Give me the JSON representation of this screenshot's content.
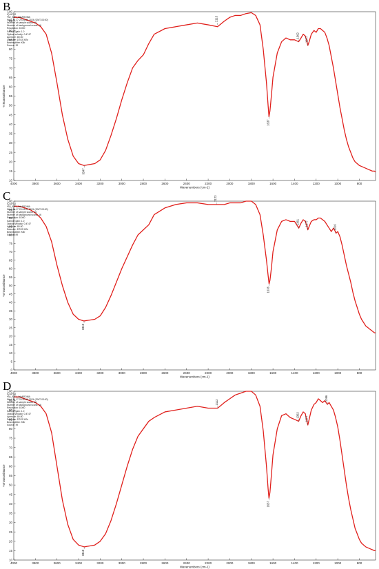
{
  "panels": [
    {
      "label": "B",
      "meta_lines": [
        "IQ-UFSJ",
        "*B2_ATR_LabAROMA",
        "Wed Jul 17 20:26:29 2024 (GMT-03:00)",
        "Number of sample scans: 16",
        "Number of background scans: 16",
        "Resolution: 8.000",
        "Sample gain: 1.0",
        "Optical velocity: 0.4747",
        "Aperture: 80.00",
        "Detector: DTGS KBr",
        "Beamsplitter: KBr",
        "Source: IR"
      ],
      "chart_data": {
        "type": "line",
        "title": "",
        "xlabel": "Wavenumbers (cm-1)",
        "ylabel": "%Transmittance",
        "xlim": [
          4000,
          650
        ],
        "ylim": [
          10,
          100
        ],
        "xticks": [
          4000,
          3800,
          3600,
          3400,
          3200,
          3000,
          2800,
          2600,
          2400,
          2200,
          2000,
          1800,
          1600,
          1400,
          1200,
          1000,
          800
        ],
        "yticks": [
          10,
          15,
          20,
          25,
          30,
          35,
          40,
          45,
          50,
          55,
          60,
          65,
          70,
          75,
          80,
          85,
          90,
          95,
          100
        ],
        "grid": false,
        "line_color": "#e0201c",
        "annotations": [
          {
            "x": 3347,
            "y": 18,
            "text": "3347"
          },
          {
            "x": 2113,
            "y": 93,
            "text": "2113"
          },
          {
            "x": 1637,
            "y": 44,
            "text": "1637"
          },
          {
            "x": 1362,
            "y": 84,
            "text": "1362"
          },
          {
            "x": 1277,
            "y": 82,
            "text": "1277"
          }
        ],
        "series": [
          {
            "x": [
              4000,
              3950,
              3900,
              3850,
              3800,
              3750,
              3700,
              3650,
              3600,
              3550,
              3500,
              3450,
              3400,
              3350,
              3300,
              3250,
              3200,
              3150,
              3100,
              3050,
              3000,
              2950,
              2900,
              2850,
              2800,
              2750,
              2700,
              2600,
              2500,
              2400,
              2300,
              2200,
              2113,
              2050,
              2000,
              1950,
              1900,
              1850,
              1800,
              1760,
              1720,
              1690,
              1660,
              1645,
              1637,
              1628,
              1615,
              1600,
              1560,
              1520,
              1480,
              1440,
              1400,
              1362,
              1340,
              1320,
              1300,
              1290,
              1277,
              1265,
              1245,
              1220,
              1200,
              1180,
              1160,
              1140,
              1120,
              1100,
              1080,
              1060,
              1040,
              1020,
              1000,
              980,
              960,
              940,
              920,
              900,
              880,
              860,
              840,
              820,
              800,
              780,
              760,
              740,
              720,
              700,
              680,
              660,
              650
            ],
            "y": [
              97,
              97,
              96,
              95,
              94,
              92,
              88,
              78,
              62,
              45,
              32,
              23,
              19,
              18,
              18.5,
              19,
              21,
              26,
              34,
              43,
              53,
              62,
              70,
              74,
              77,
              83,
              88,
              91,
              92,
              93,
              94,
              93,
              92,
              95,
              97,
              98,
              98,
              99,
              99.5,
              98,
              93,
              80,
              62,
              50,
              44,
              47,
              55,
              65,
              78,
              84,
              86,
              85,
              85,
              84,
              86,
              88,
              87,
              85,
              82,
              84,
              88,
              90,
              89,
              91,
              91,
              90,
              89,
              86,
              82,
              76,
              70,
              63,
              56,
              49,
              43,
              37,
              32,
              28,
              25,
              22,
              20,
              19,
              18,
              17.5,
              17,
              16.5,
              16,
              15.5,
              15,
              15,
              14.5
            ]
          }
        ]
      }
    },
    {
      "label": "C",
      "meta_lines": [
        "IQ-UFSJ",
        "*B3_ATR_LabAROMA",
        "Wed Jul 17 20:26:29 2024 (GMT-03:00)",
        "Number of sample scans: 16",
        "Number of background scans: 16",
        "Resolution: 8.000",
        "Sample gain: 1.0",
        "Optical velocity: 0.4747",
        "Aperture: 80.00",
        "Detector: DTGS KBr",
        "Beamsplitter: KBr",
        "Source: IR"
      ],
      "chart_data": {
        "type": "line",
        "title": "",
        "xlabel": "Wavenumbers (cm-1)",
        "ylabel": "%Transmittance",
        "xlim": [
          4000,
          650
        ],
        "ylim": [
          0,
          100
        ],
        "xticks": [
          4000,
          3800,
          3600,
          3400,
          3200,
          3000,
          2800,
          2600,
          2400,
          2200,
          2000,
          1800,
          1600,
          1400,
          1200,
          1000,
          800
        ],
        "yticks": [
          0,
          5,
          10,
          15,
          20,
          25,
          30,
          35,
          40,
          45,
          50,
          55,
          60,
          65,
          70,
          75,
          80,
          85,
          90,
          95,
          100
        ],
        "grid": false,
        "line_color": "#e0201c",
        "annotations": [
          {
            "x": 3349,
            "y": 29,
            "text": "3349"
          },
          {
            "x": 2123,
            "y": 98,
            "text": "2123"
          },
          {
            "x": 1636,
            "y": 51,
            "text": "1636"
          },
          {
            "x": 1361,
            "y": 84,
            "text": "1361"
          },
          {
            "x": 1277,
            "y": 83,
            "text": "1277"
          },
          {
            "x": 1016,
            "y": 81,
            "text": "1016"
          }
        ],
        "series": [
          {
            "x": [
              4000,
              3950,
              3900,
              3850,
              3800,
              3750,
              3700,
              3650,
              3600,
              3550,
              3500,
              3450,
              3400,
              3350,
              3300,
              3250,
              3200,
              3150,
              3100,
              3050,
              3000,
              2950,
              2900,
              2850,
              2800,
              2750,
              2700,
              2600,
              2500,
              2400,
              2300,
              2200,
              2123,
              2050,
              2000,
              1950,
              1900,
              1850,
              1800,
              1760,
              1720,
              1690,
              1660,
              1645,
              1636,
              1628,
              1615,
              1600,
              1560,
              1520,
              1480,
              1440,
              1400,
              1361,
              1340,
              1320,
              1300,
              1290,
              1277,
              1265,
              1245,
              1220,
              1200,
              1180,
              1160,
              1140,
              1120,
              1100,
              1080,
              1060,
              1040,
              1030,
              1016,
              1000,
              980,
              960,
              940,
              920,
              900,
              880,
              860,
              840,
              820,
              800,
              780,
              760,
              740,
              720,
              700,
              680,
              660,
              650
            ],
            "y": [
              97,
              97,
              96,
              95,
              93,
              90,
              85,
              76,
              62,
              50,
              40,
              33,
              30,
              29,
              29.5,
              30,
              32,
              37,
              44,
              52,
              60,
              67,
              74,
              80,
              83,
              86,
              92,
              96,
              98,
              99,
              99,
              98,
              98,
              98,
              99,
              99,
              99,
              100,
              100,
              98,
              92,
              80,
              65,
              56,
              51,
              53,
              60,
              70,
              83,
              88,
              89,
              88,
              88,
              84,
              87,
              89,
              88,
              86,
              83,
              85,
              88,
              89,
              89,
              90,
              90,
              89,
              88,
              86,
              84,
              82,
              84,
              83,
              81,
              82,
              79,
              74,
              68,
              62,
              57,
              52,
              46,
              41,
              37,
              33,
              30,
              28,
              26,
              25,
              24,
              23,
              22,
              22
            ]
          }
        ]
      }
    },
    {
      "label": "D",
      "meta_lines": [
        "IQ-UFSJ",
        "*B4_ATR_LabAROMA",
        "Wed Jul 17 20:30:16 2024 (GMT-03:00)",
        "Number of sample scans: 16",
        "Number of background scans: 16",
        "Resolution: 8.000",
        "Sample gain: 1.0",
        "Optical velocity: 0.4747",
        "Aperture: 80.00",
        "Detector: DTGS KBr",
        "Beamsplitter: KBr",
        "Source: IR"
      ],
      "chart_data": {
        "type": "line",
        "title": "",
        "xlabel": "Wavenumbers (cm-1)",
        "ylabel": "%Transmittance",
        "xlim": [
          4000,
          650
        ],
        "ylim": [
          10,
          100
        ],
        "xticks": [
          4000,
          3800,
          3600,
          3400,
          3200,
          3000,
          2800,
          2600,
          2400,
          2200,
          2000,
          1800,
          1600,
          1400,
          1200,
          1000,
          800
        ],
        "yticks": [
          10,
          15,
          20,
          25,
          30,
          35,
          40,
          45,
          50,
          55,
          60,
          65,
          70,
          75,
          80,
          85,
          90,
          95,
          100
        ],
        "grid": false,
        "line_color": "#e0201c",
        "annotations": [
          {
            "x": 3348,
            "y": 17,
            "text": "3348"
          },
          {
            "x": 2112,
            "y": 91,
            "text": "2112"
          },
          {
            "x": 1637,
            "y": 43,
            "text": "1637"
          },
          {
            "x": 1362,
            "y": 84,
            "text": "1362"
          },
          {
            "x": 1277,
            "y": 82,
            "text": "1277"
          },
          {
            "x": 1096,
            "y": 93,
            "text": "1096"
          }
        ],
        "series": [
          {
            "x": [
              4000,
              3950,
              3900,
              3850,
              3800,
              3750,
              3700,
              3650,
              3600,
              3550,
              3500,
              3450,
              3400,
              3348,
              3300,
              3250,
              3200,
              3150,
              3100,
              3050,
              3000,
              2950,
              2900,
              2850,
              2800,
              2750,
              2700,
              2600,
              2500,
              2400,
              2300,
              2200,
              2112,
              2050,
              2000,
              1950,
              1900,
              1850,
              1800,
              1760,
              1720,
              1690,
              1660,
              1645,
              1637,
              1628,
              1615,
              1600,
              1560,
              1520,
              1480,
              1440,
              1400,
              1362,
              1340,
              1320,
              1300,
              1290,
              1277,
              1265,
              1245,
              1220,
              1200,
              1180,
              1160,
              1140,
              1120,
              1096,
              1080,
              1060,
              1040,
              1020,
              1000,
              980,
              960,
              940,
              920,
              900,
              880,
              860,
              840,
              820,
              800,
              780,
              760,
              740,
              720,
              700,
              680,
              660,
              650
            ],
            "y": [
              97,
              97,
              96,
              95,
              94,
              92,
              88,
              78,
              60,
              42,
              29,
              21,
              18,
              17,
              17.5,
              18,
              20,
              24,
              31,
              40,
              50,
              60,
              69,
              76,
              80,
              84,
              86,
              89,
              90,
              91,
              92,
              91,
              91,
              94,
              96,
              98,
              99,
              100,
              100,
              98,
              92,
              79,
              60,
              48,
              43,
              46,
              55,
              66,
              80,
              87,
              88,
              86,
              85,
              84,
              87,
              89,
              88,
              85,
              82,
              85,
              90,
              93,
              94,
              96,
              95,
              94,
              95,
              93,
              94,
              92,
              90,
              86,
              81,
              74,
              66,
              58,
              50,
              43,
              37,
              32,
              27,
              24,
              21,
              19,
              18,
              17,
              16.5,
              16,
              15.5,
              15,
              15
            ]
          }
        ]
      }
    }
  ]
}
